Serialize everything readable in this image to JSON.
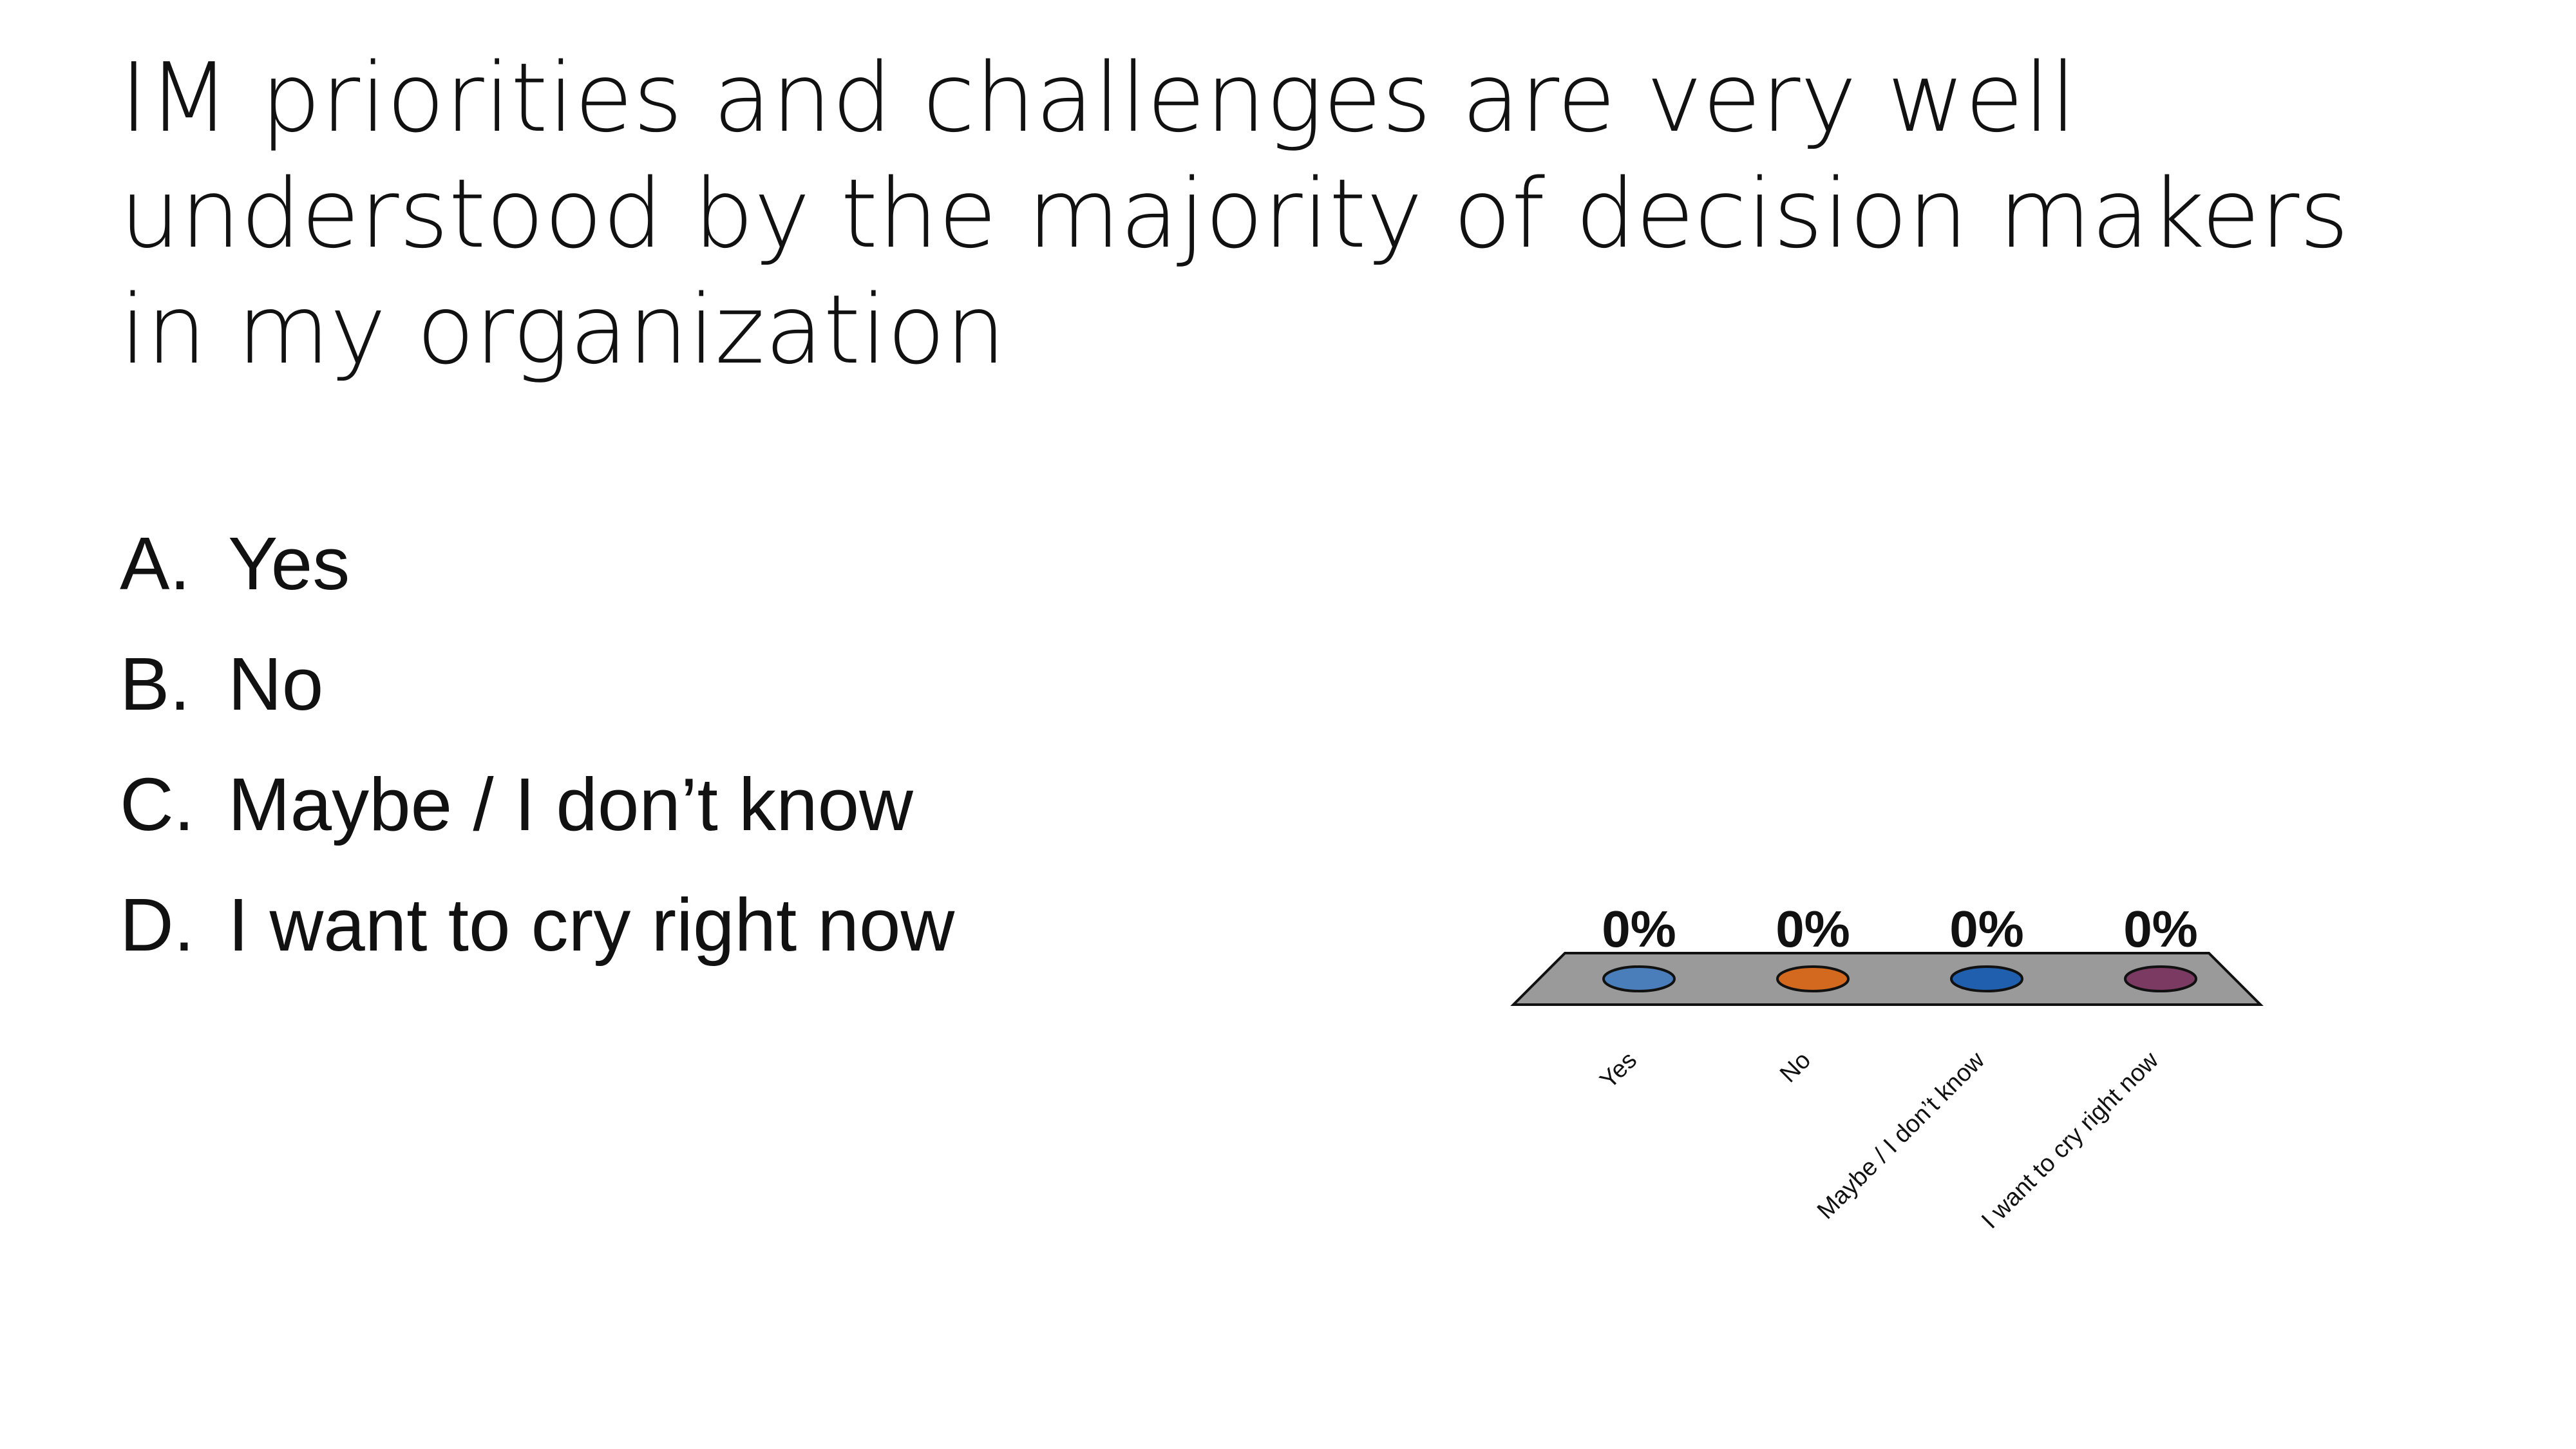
{
  "slide": {
    "title": "IM priorities and challenges are very well understood by the majority of decision makers in my organization",
    "options": [
      {
        "letter": "A.",
        "text": "Yes"
      },
      {
        "letter": "B.",
        "text": "No"
      },
      {
        "letter": "C.",
        "text": "Maybe / I don’t know"
      },
      {
        "letter": "D.",
        "text": "I want to cry right now"
      }
    ]
  },
  "chart_data": {
    "type": "bar",
    "style": "3d",
    "categories": [
      "Yes",
      "No",
      "Maybe / I don’t know",
      "I want to cry right now"
    ],
    "values": [
      0,
      0,
      0,
      0
    ],
    "value_labels": [
      "0%",
      "0%",
      "0%",
      "0%"
    ],
    "colors": [
      "#4a7ebb",
      "#d2691e",
      "#1f5fad",
      "#7b3a62"
    ],
    "floor_color": "#9a9a9a",
    "ylim": [
      0,
      100
    ],
    "grid": false,
    "legend": "none"
  }
}
